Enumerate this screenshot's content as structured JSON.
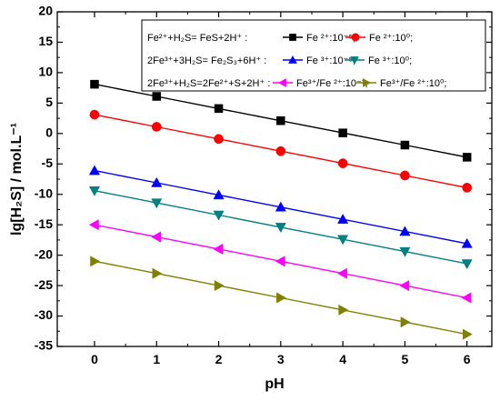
{
  "chart_data": {
    "type": "line",
    "xlabel": "pH",
    "ylabel": "lg[H₂S] / mol.L⁻¹",
    "xlim": [
      -0.6,
      6.4
    ],
    "ylim": [
      -35,
      20
    ],
    "xticks": [
      0,
      1,
      2,
      3,
      4,
      5,
      6
    ],
    "yticks": [
      20,
      15,
      10,
      5,
      0,
      -5,
      -10,
      -15,
      -20,
      -25,
      -30,
      -35
    ],
    "grid": false,
    "legend_position": "top-right",
    "x": [
      0,
      1,
      2,
      3,
      4,
      5,
      6
    ],
    "legend_rows": [
      {
        "prefix": "Fe²⁺+H₂S= FeS+2H⁺ :",
        "entries": [
          {
            "series": 0,
            "label": "Fe ²⁺:10⁻⁵;"
          },
          {
            "series": 1,
            "label": "Fe ²⁺:10⁰;"
          }
        ]
      },
      {
        "prefix": "2Fe³⁺+3H₂S= Fe₂S₃+6H⁺ :",
        "entries": [
          {
            "series": 2,
            "label": "Fe ³⁺:10⁻⁵;"
          },
          {
            "series": 3,
            "label": "Fe ³⁺:10⁰;"
          }
        ]
      },
      {
        "prefix": "2Fe³⁺+H₂S=2Fe²⁺+S+2H⁺ :",
        "entries": [
          {
            "series": 4,
            "label": "Fe³⁺/Fe ²⁺:10⁻³;"
          },
          {
            "series": 5,
            "label": "Fe³⁺/Fe ²⁺:10⁰;"
          }
        ]
      }
    ],
    "series": [
      {
        "color": "#000000",
        "marker": "square",
        "values": [
          8.1,
          6.1,
          4.1,
          2.1,
          0.1,
          -1.9,
          -3.9
        ]
      },
      {
        "color": "#ff0000",
        "marker": "circle",
        "values": [
          3.1,
          1.1,
          -0.9,
          -2.9,
          -4.9,
          -6.9,
          -8.9
        ]
      },
      {
        "color": "#0000ff",
        "marker": "triangle-up",
        "values": [
          -6.1,
          -8.1,
          -10.1,
          -12.1,
          -14.1,
          -16.1,
          -18.1
        ]
      },
      {
        "color": "#008080",
        "marker": "triangle-down",
        "values": [
          -9.4,
          -11.4,
          -13.4,
          -15.4,
          -17.4,
          -19.4,
          -21.4
        ]
      },
      {
        "color": "#ff00ff",
        "marker": "triangle-left",
        "values": [
          -15,
          -17,
          -19,
          -21,
          -23,
          -25,
          -27
        ]
      },
      {
        "color": "#808000",
        "marker": "triangle-right",
        "values": [
          -21,
          -23,
          -25,
          -27,
          -29,
          -31,
          -33
        ]
      }
    ]
  }
}
